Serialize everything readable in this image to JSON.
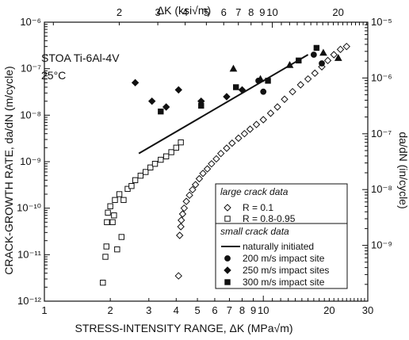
{
  "chart_data": {
    "type": "scatter",
    "title": "",
    "annotations": [
      "STOA Ti-6Al-4V",
      "25°C"
    ],
    "xlabel": "STRESS-INTENSITY RANGE, ΔK (MPa√m)",
    "ylabel": "CRACK-GROWTH RATE, da/dN (m/cycle)",
    "x2label": "ΔK (ksi√m)",
    "y2label": "da/dN (in/cycle)",
    "xscale": "log",
    "yscale": "log",
    "xlim": [
      1,
      30
    ],
    "ylim": [
      1e-12,
      1e-06
    ],
    "y2lim": [
      1e-10,
      1e-05
    ],
    "grid": false,
    "xticks": [
      {
        "v": 1,
        "label": "1"
      },
      {
        "v": 2,
        "label": "2"
      },
      {
        "v": 3,
        "label": "3"
      },
      {
        "v": 4,
        "label": "4"
      },
      {
        "v": 5,
        "label": "5"
      },
      {
        "v": 6,
        "label": "6"
      },
      {
        "v": 7,
        "label": "7"
      },
      {
        "v": 8,
        "label": "8"
      },
      {
        "v": 9,
        "label": "9"
      },
      {
        "v": 10,
        "label": "10"
      },
      {
        "v": 20,
        "label": "20"
      },
      {
        "v": 30,
        "label": "30"
      }
    ],
    "x2ticks": [
      {
        "v": 2,
        "label": "2"
      },
      {
        "v": 3,
        "label": "3"
      },
      {
        "v": 4,
        "label": "4"
      },
      {
        "v": 5,
        "label": "5"
      },
      {
        "v": 6,
        "label": "6"
      },
      {
        "v": 7,
        "label": "7"
      },
      {
        "v": 8,
        "label": "8"
      },
      {
        "v": 9,
        "label": "9"
      },
      {
        "v": 10,
        "label": "10"
      },
      {
        "v": 20,
        "label": "20"
      }
    ],
    "yticks": [
      {
        "e": -12,
        "label": "10⁻¹²"
      },
      {
        "e": -11,
        "label": "10⁻¹¹"
      },
      {
        "e": -10,
        "label": "10⁻¹⁰"
      },
      {
        "e": -9,
        "label": "10⁻⁹"
      },
      {
        "e": -8,
        "label": "10⁻⁸"
      },
      {
        "e": -7,
        "label": "10⁻⁷"
      },
      {
        "e": -6,
        "label": "10⁻⁶"
      }
    ],
    "y2ticks": [
      {
        "e": -9,
        "label": "10⁻⁹"
      },
      {
        "e": -8,
        "label": "10⁻⁸"
      },
      {
        "e": -7,
        "label": "10⁻⁷"
      },
      {
        "e": -6,
        "label": "10⁻⁶"
      },
      {
        "e": -5,
        "label": "10⁻⁵"
      }
    ],
    "legend": {
      "placement": "bottom-right",
      "large_title": "large crack data",
      "small_title": "small crack data",
      "entries": [
        {
          "marker": "diamond-open",
          "label": "R = 0.1"
        },
        {
          "marker": "square-open",
          "label": "R = 0.8-0.95"
        },
        {
          "marker": "line",
          "label": "naturally initiated"
        },
        {
          "marker": "circle",
          "label": "200 m/s impact site"
        },
        {
          "marker": "diamond",
          "label": "250 m/s impact sites"
        },
        {
          "marker": "square",
          "label": "300 m/s impact site"
        }
      ]
    },
    "series": [
      {
        "marker": "diamond-open",
        "points": [
          [
            4.1,
            3.5e-12
          ],
          [
            4.15,
            2.6e-11
          ],
          [
            4.2,
            4e-11
          ],
          [
            4.22,
            5.5e-11
          ],
          [
            4.28,
            7.5e-11
          ],
          [
            4.35,
            1e-10
          ],
          [
            4.45,
            1.4e-10
          ],
          [
            4.6,
            1.9e-10
          ],
          [
            4.75,
            2.5e-10
          ],
          [
            4.9,
            3.2e-10
          ],
          [
            5.1,
            4.3e-10
          ],
          [
            5.3,
            5.6e-10
          ],
          [
            5.55,
            7e-10
          ],
          [
            5.8,
            9e-10
          ],
          [
            6.1,
            1.15e-09
          ],
          [
            6.4,
            1.5e-09
          ],
          [
            6.8,
            1.95e-09
          ],
          [
            7.2,
            2.5e-09
          ],
          [
            7.7,
            3.2e-09
          ],
          [
            8.2,
            4e-09
          ],
          [
            8.7,
            5e-09
          ],
          [
            9.3,
            6.3e-09
          ],
          [
            10.0,
            8e-09
          ],
          [
            10.8,
            1.1e-08
          ],
          [
            11.6,
            1.5e-08
          ],
          [
            12.5,
            2.2e-08
          ],
          [
            13.6,
            3.2e-08
          ],
          [
            14.8,
            4.5e-08
          ],
          [
            16.0,
            6e-08
          ],
          [
            17.2,
            8e-08
          ],
          [
            18.5,
            1.1e-07
          ],
          [
            19.7,
            1.5e-07
          ],
          [
            21.0,
            2e-07
          ],
          [
            22.5,
            2.6e-07
          ],
          [
            24.0,
            3e-07
          ]
        ]
      },
      {
        "marker": "square-open",
        "points": [
          [
            1.85,
            2.5e-12
          ],
          [
            1.9,
            9e-12
          ],
          [
            1.92,
            1.5e-11
          ],
          [
            1.93,
            5e-11
          ],
          [
            1.95,
            8e-11
          ],
          [
            2.0,
            1.1e-10
          ],
          [
            2.05,
            5e-11
          ],
          [
            2.08,
            7e-11
          ],
          [
            2.1,
            1.5e-10
          ],
          [
            2.15,
            1.3e-11
          ],
          [
            2.2,
            2e-10
          ],
          [
            2.25,
            2.4e-11
          ],
          [
            2.3,
            1.5e-10
          ],
          [
            2.4,
            2.6e-10
          ],
          [
            2.5,
            3e-10
          ],
          [
            2.6,
            4e-10
          ],
          [
            2.75,
            5e-10
          ],
          [
            2.9,
            6e-10
          ],
          [
            3.05,
            7.5e-10
          ],
          [
            3.2,
            9e-10
          ],
          [
            3.4,
            1.1e-09
          ],
          [
            3.6,
            1.3e-09
          ],
          [
            3.8,
            1.6e-09
          ],
          [
            4.0,
            2e-09
          ],
          [
            4.2,
            2.6e-09
          ]
        ]
      },
      {
        "marker": "circle",
        "points": [
          [
            9.5,
            5.5e-08
          ],
          [
            10.0,
            3.2e-08
          ],
          [
            17.0,
            2e-07
          ],
          [
            18.5,
            1.3e-07
          ]
        ]
      },
      {
        "marker": "diamond",
        "points": [
          [
            2.6,
            5e-08
          ],
          [
            3.1,
            2e-08
          ],
          [
            3.6,
            1.5e-08
          ],
          [
            4.1,
            3.5e-08
          ],
          [
            5.2,
            2e-08
          ],
          [
            6.8,
            2.5e-08
          ],
          [
            8.0,
            3.5e-08
          ]
        ]
      },
      {
        "marker": "triangle",
        "points": [
          [
            7.3,
            1e-07
          ],
          [
            9.7,
            6e-08
          ],
          [
            13.2,
            1.2e-07
          ],
          [
            18.8,
            2.2e-07
          ],
          [
            22.0,
            1.7e-07
          ]
        ]
      },
      {
        "marker": "square",
        "points": [
          [
            3.4,
            1.2e-08
          ],
          [
            5.2,
            1.6e-08
          ],
          [
            7.5,
            4e-08
          ],
          [
            10.5,
            5.5e-08
          ],
          [
            14.5,
            1.5e-07
          ],
          [
            17.5,
            2.8e-07
          ]
        ]
      }
    ],
    "lines": [
      {
        "name": "naturally initiated",
        "points": [
          [
            2.7,
            1.5e-09
          ],
          [
            16.0,
            2e-07
          ]
        ]
      }
    ]
  }
}
